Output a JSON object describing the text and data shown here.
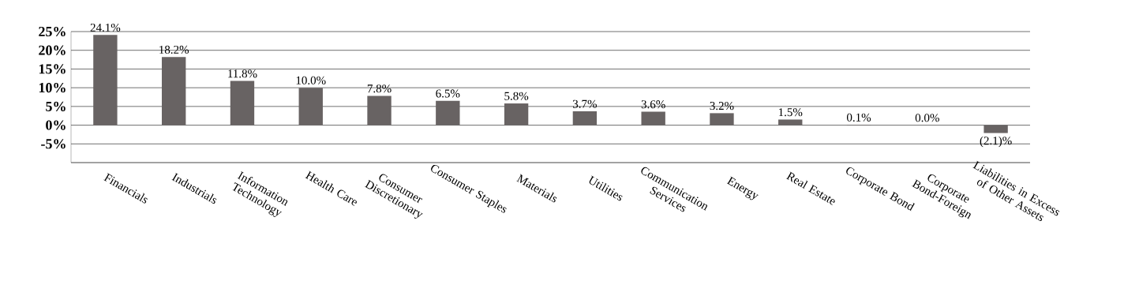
{
  "chart_data": {
    "type": "bar",
    "categories": [
      "Financials",
      "Industrials",
      "Information Technology",
      "Health Care",
      "Consumer Discretionary",
      "Consumer Staples",
      "Materials",
      "Utilities",
      "Communication Services",
      "Energy",
      "Real Estate",
      "Corporate Bond",
      "Corporate Bond-Foreign",
      "Liabilities in Excess of Other Assets"
    ],
    "values": [
      24.1,
      18.2,
      11.8,
      10.0,
      7.8,
      6.5,
      5.8,
      3.7,
      3.6,
      3.2,
      1.5,
      0.1,
      0.0,
      -2.1
    ],
    "value_labels": [
      "24.1%",
      "18.2%",
      "11.8%",
      "10.0%",
      "7.8%",
      "6.5%",
      "5.8%",
      "3.7%",
      "3.6%",
      "3.2%",
      "1.5%",
      "0.1%",
      "0.0%",
      "(2.1)%"
    ],
    "color": "#686363",
    "ylim": [
      -10,
      25
    ],
    "yticks": [
      {
        "value": -10,
        "label": null
      },
      {
        "value": -5,
        "label": "-5%"
      },
      {
        "value": 0,
        "label": "0%"
      },
      {
        "value": 5,
        "label": "5%"
      },
      {
        "value": 10,
        "label": "10%"
      },
      {
        "value": 15,
        "label": "15%"
      },
      {
        "value": 20,
        "label": "20%"
      },
      {
        "value": 25,
        "label": "25%"
      }
    ],
    "grid": "y"
  }
}
